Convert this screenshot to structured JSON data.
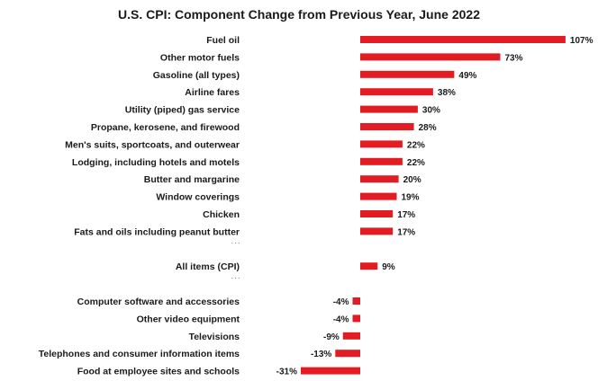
{
  "chart_data": {
    "type": "bar",
    "orientation": "horizontal",
    "title": "U.S. CPI: Component Change from Previous Year, June 2022",
    "value_suffix": "%",
    "bar_color": "#e31b23",
    "separator": "...",
    "groups": [
      {
        "categories": [
          "Fuel oil",
          "Other motor fuels",
          "Gasoline (all types)",
          "Airline fares",
          "Utility (piped) gas service",
          "Propane, kerosene, and firewood",
          "Men's suits, sportcoats, and outerwear",
          "Lodging, including hotels and motels",
          "Butter and margarine",
          "Window coverings",
          "Chicken",
          "Fats and oils including peanut butter"
        ],
        "values": [
          107,
          73,
          49,
          38,
          30,
          28,
          22,
          22,
          20,
          19,
          17,
          17
        ]
      },
      {
        "categories": [
          "All items (CPI)"
        ],
        "values": [
          9
        ]
      },
      {
        "categories": [
          "Computer software and accessories",
          "Other video equipment",
          "Televisions",
          "Telephones and consumer information items",
          "Food at employee sites and schools"
        ],
        "values": [
          -4,
          -4,
          -9,
          -13,
          -31
        ]
      }
    ]
  }
}
